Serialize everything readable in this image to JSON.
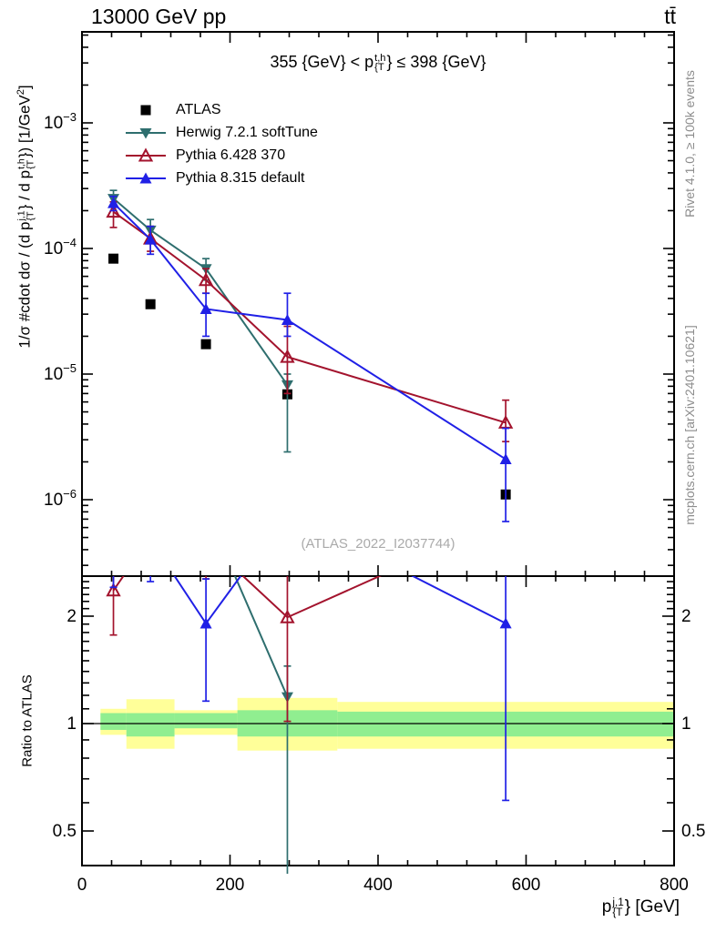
{
  "header": {
    "left": "13000 GeV pp",
    "right": "tt̄"
  },
  "side_texts": {
    "top": "Rivet 4.1.0, ≥ 100k events",
    "bottom": "mcplots.cern.ch [arXiv:2401.10621]"
  },
  "watermark": "(ATLAS_2022_I2037744)",
  "chart_data": {
    "type": "line",
    "title_parts": [
      {
        "t": "355 {GeV} < p"
      },
      {
        "over": "t,h",
        "under": "{T"
      },
      {
        "t": "} ≤ 398 {GeV}"
      }
    ],
    "ylabel_parts": [
      {
        "t": "1/σ #cdot dσ / (d p"
      },
      {
        "over": "j,1",
        "under": "{T"
      },
      {
        "t": "} / d p"
      },
      {
        "over": "t,h",
        "under": "{T"
      },
      {
        "t": "}) [1/GeV"
      },
      {
        "sup": "2"
      },
      {
        "t": "]"
      }
    ],
    "xlabel_parts": [
      {
        "t": "p"
      },
      {
        "over": "j,1",
        "under": "{T"
      },
      {
        "t": "} [GeV]"
      }
    ],
    "ratio_ylabel": "Ratio to ATLAS",
    "x_axis": {
      "min": 0,
      "max": 800,
      "major_ticks": [
        0,
        200,
        400,
        600,
        800
      ],
      "minor_step": 40,
      "unit": "GeV"
    },
    "y_axis_main": {
      "scale": "log",
      "min": 2.55e-07,
      "max": 0.0052,
      "labeled_exponents": [
        -3,
        -4,
        -5,
        -6
      ]
    },
    "y_axis_ratio": {
      "scale": "log",
      "min": 0.4,
      "max": 2.59,
      "labeled_ticks": [
        2,
        1,
        0.5
      ]
    },
    "bin_edges": [
      25,
      60,
      125,
      210,
      345,
      800
    ],
    "x_centers": [
      42.5,
      92.5,
      167.5,
      277.5,
      572.5
    ],
    "series": [
      {
        "name": "ATLAS",
        "color": "#000000",
        "marker": "square-filled",
        "line": false,
        "values": [
          8.3e-05,
          3.6e-05,
          1.73e-05,
          6.9e-06,
          1.1e-06
        ],
        "err_lo": null,
        "err_hi": null
      },
      {
        "name": "Herwig 7.2.1 softTune",
        "color": "#2e6e6e",
        "marker": "triangle-down-filled",
        "line": true,
        "values": [
          0.00025,
          0.00014,
          6.9e-05,
          8.2e-06,
          null
        ],
        "err_lo": [
          0.00022,
          0.00011,
          5.6e-05,
          2.4e-06,
          null
        ],
        "err_hi": [
          0.00029,
          0.00017,
          8.3e-05,
          1e-05,
          null
        ]
      },
      {
        "name": "Pythia 6.428 370",
        "color": "#a3132d",
        "marker": "triangle-up-open",
        "line": true,
        "values": [
          0.000196,
          0.00012,
          5.6e-05,
          1.37e-05,
          4.1e-06
        ],
        "err_lo": [
          0.000147,
          9.5e-05,
          4.4e-05,
          7e-06,
          2.9e-06
        ],
        "err_hi": [
          0.000235,
          0.00015,
          6.9e-05,
          2.4e-05,
          6.2e-06
        ]
      },
      {
        "name": "Pythia 8.315 default",
        "color": "#2020e6",
        "marker": "triangle-up-filled",
        "line": true,
        "values": [
          0.00023,
          0.000118,
          3.3e-05,
          2.7e-05,
          2.1e-06
        ],
        "err_lo": [
          0.0002,
          9e-05,
          2e-05,
          2e-05,
          6.7e-07
        ],
        "err_hi": [
          0.00026,
          0.00015,
          4.4e-05,
          4.4e-05,
          3.7e-06
        ]
      }
    ],
    "ratio_bands": {
      "yellow_color": "#ffff99",
      "green_color": "#90ee90",
      "yellow_lo": [
        0.93,
        0.85,
        0.93,
        0.84,
        0.85
      ],
      "yellow_hi": [
        1.1,
        1.17,
        1.09,
        1.18,
        1.15
      ],
      "green_lo": [
        0.96,
        0.92,
        0.97,
        0.92,
        0.92
      ],
      "green_hi": [
        1.07,
        1.07,
        1.07,
        1.09,
        1.08
      ]
    },
    "legend_position": "top-left"
  }
}
